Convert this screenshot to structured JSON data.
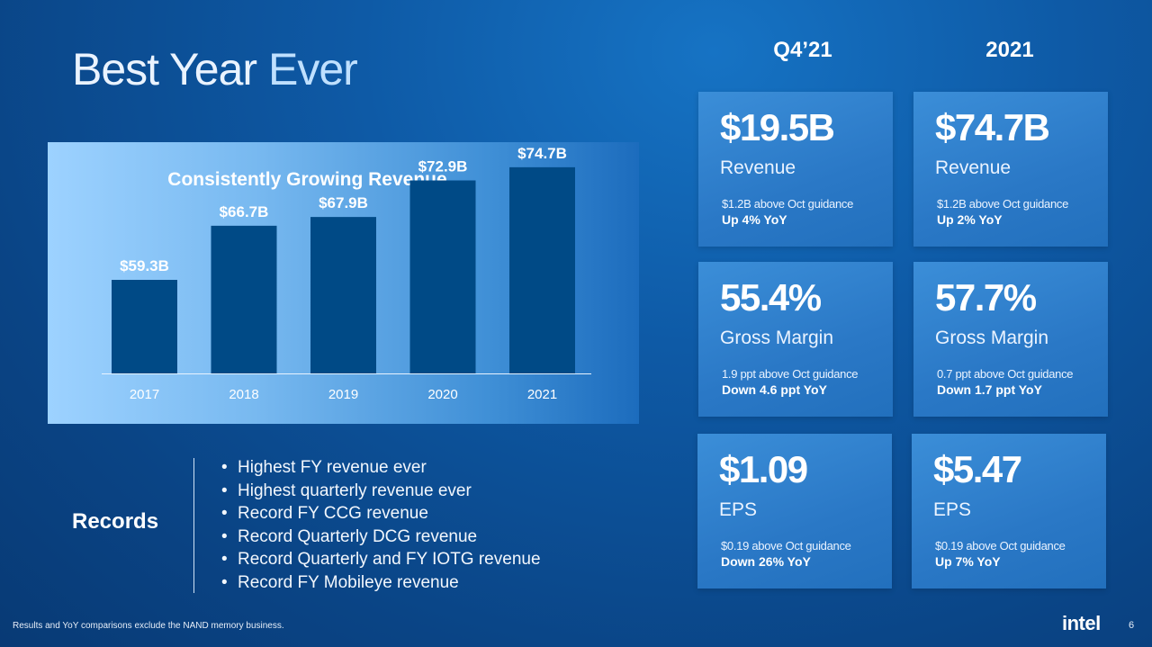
{
  "title": {
    "main": "Best Year ",
    "highlight": "Ever"
  },
  "chart_data": {
    "type": "bar",
    "title": "Consistently Growing Revenue",
    "categories": [
      "2017",
      "2018",
      "2019",
      "2020",
      "2021"
    ],
    "values": [
      59.3,
      66.7,
      67.9,
      72.9,
      74.7
    ],
    "data_labels": [
      "$59.3B",
      "$66.7B",
      "$67.9B",
      "$72.9B",
      "$74.7B"
    ],
    "unit": "$B",
    "xlabel": "",
    "ylabel": "",
    "bar_color": "#004a86",
    "grid": false
  },
  "columns": {
    "q4": "Q4’21",
    "fy": "2021"
  },
  "cards": [
    {
      "value": "$19.5B",
      "metric": "Revenue",
      "note": "$1.2B above Oct guidance",
      "change": "Up 4% YoY"
    },
    {
      "value": "$74.7B",
      "metric": "Revenue",
      "note": "$1.2B above Oct guidance",
      "change": "Up 2% YoY"
    },
    {
      "value": "55.4%",
      "metric": "Gross Margin",
      "note": "1.9 ppt above Oct guidance",
      "change": "Down 4.6 ppt YoY"
    },
    {
      "value": "57.7%",
      "metric": "Gross Margin",
      "note": "0.7 ppt above Oct guidance",
      "change": "Down 1.7 ppt YoY"
    },
    {
      "value": "$1.09",
      "metric": "EPS",
      "note": "$0.19 above Oct guidance",
      "change": "Down 26% YoY"
    },
    {
      "value": "$5.47",
      "metric": "EPS",
      "note": "$0.19 above Oct guidance",
      "change": "Up 7% YoY"
    }
  ],
  "records": {
    "label": "Records",
    "items": [
      "Highest FY revenue ever",
      "Highest quarterly revenue ever",
      "Record FY CCG revenue",
      "Record Quarterly DCG revenue",
      "Record Quarterly and FY IOTG revenue",
      "Record FY Mobileye revenue"
    ]
  },
  "footnote": "Results and YoY comparisons exclude the NAND memory business.",
  "logo": "intel",
  "page_number": "6"
}
